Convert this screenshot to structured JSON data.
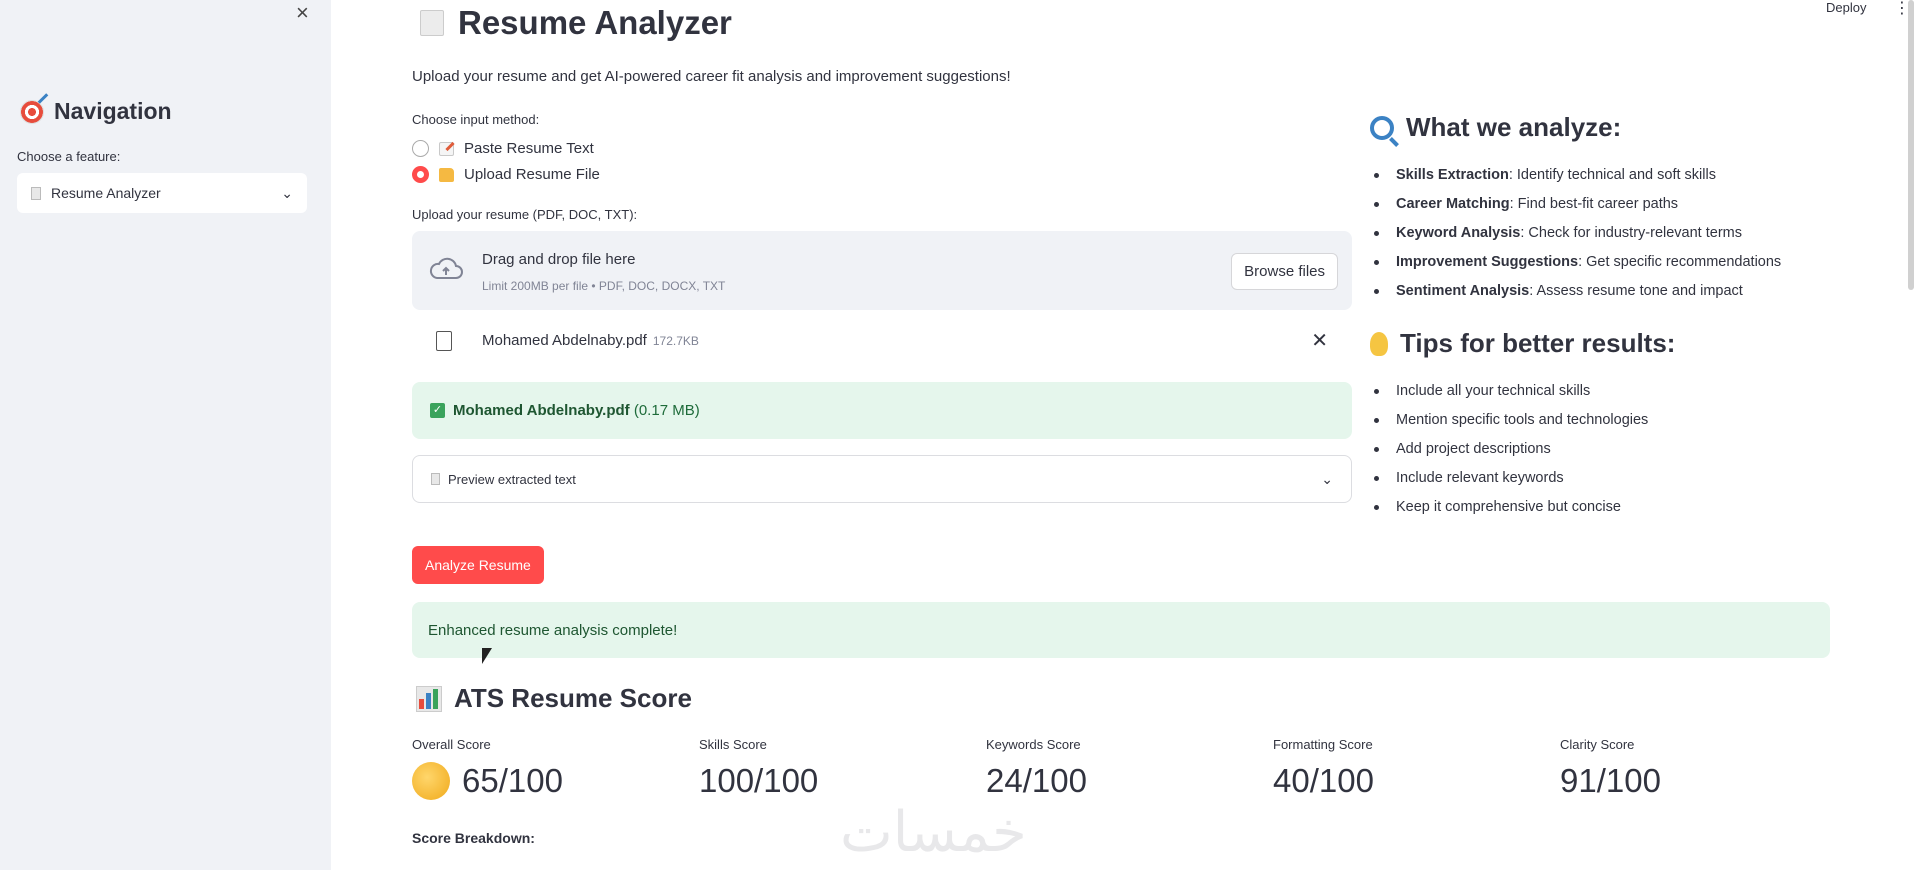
{
  "sidebar": {
    "close_label": "×",
    "title": "Navigation",
    "choose_label": "Choose a feature:",
    "selected_feature": "Resume Analyzer"
  },
  "topbar": {
    "deploy_label": "Deploy",
    "menu_label": "⋮"
  },
  "main": {
    "title": "Resume Analyzer",
    "subtitle": "Upload your resume and get AI-powered career fit analysis and improvement suggestions!",
    "input_method_label": "Choose input method:",
    "options": [
      {
        "label": "Paste Resume Text",
        "selected": false
      },
      {
        "label": "Upload Resume File",
        "selected": true
      }
    ],
    "upload_label": "Upload your resume (PDF, DOC, TXT):",
    "dropzone": {
      "title": "Drag and drop file here",
      "hint": "Limit 200MB per file • PDF, DOC, DOCX, TXT",
      "browse_label": "Browse files"
    },
    "uploaded_file": {
      "name": "Mohamed Abdelnaby.pdf",
      "size": "172.7KB"
    },
    "success": {
      "filename": "Mohamed Abdelnaby.pdf",
      "size_text": "(0.17 MB)"
    },
    "preview_label": "Preview extracted text",
    "analyze_label": "Analyze Resume",
    "complete_message": "Enhanced resume analysis complete!",
    "ats": {
      "heading": "ATS Resume Score",
      "metrics": [
        {
          "label": "Overall Score",
          "value": "65/100"
        },
        {
          "label": "Skills Score",
          "value": "100/100"
        },
        {
          "label": "Keywords Score",
          "value": "24/100"
        },
        {
          "label": "Formatting Score",
          "value": "40/100"
        },
        {
          "label": "Clarity Score",
          "value": "91/100"
        }
      ],
      "breakdown_label": "Score Breakdown:"
    }
  },
  "right": {
    "analyze_heading": "What we analyze:",
    "analyze_items": [
      {
        "bold": "Skills Extraction",
        "text": ": Identify technical and soft skills"
      },
      {
        "bold": "Career Matching",
        "text": ": Find best-fit career paths"
      },
      {
        "bold": "Keyword Analysis",
        "text": ": Check for industry-relevant terms"
      },
      {
        "bold": "Improvement Suggestions",
        "text": ": Get specific recommendations"
      },
      {
        "bold": "Sentiment Analysis",
        "text": ": Assess resume tone and impact"
      }
    ],
    "tips_heading": "Tips for better results:",
    "tips": [
      "Include all your technical skills",
      "Mention specific tools and technologies",
      "Add project descriptions",
      "Include relevant keywords",
      "Keep it comprehensive but concise"
    ]
  },
  "watermark": "خمسات",
  "icons": {
    "nav": "target-icon",
    "analyze": "magnifier-icon",
    "tips": "lightbulb-icon",
    "ats": "bar-chart-icon"
  }
}
